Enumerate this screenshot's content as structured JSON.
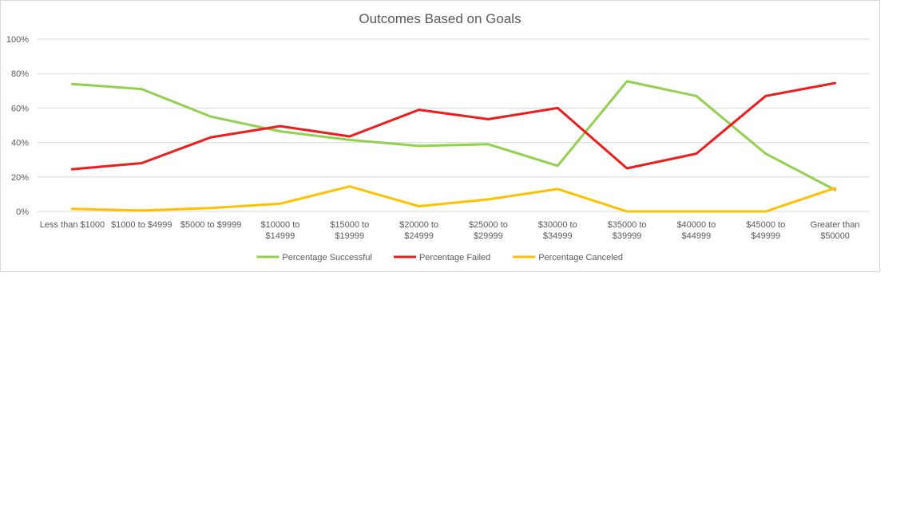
{
  "chart_data": {
    "type": "line",
    "title": "Outcomes Based on Goals",
    "xlabel": "",
    "ylabel": "",
    "categories": [
      [
        "Less than $1000"
      ],
      [
        "$1000 to $4999"
      ],
      [
        "$5000 to $9999"
      ],
      [
        "$10000 to",
        "$14999"
      ],
      [
        "$15000 to",
        "$19999"
      ],
      [
        "$20000 to",
        "$24999"
      ],
      [
        "$25000 to",
        "$29999"
      ],
      [
        "$30000 to",
        "$34999"
      ],
      [
        "$35000 to",
        "$39999"
      ],
      [
        "$40000 to",
        "$44999"
      ],
      [
        "$45000 to",
        "$49999"
      ],
      [
        "Greater than",
        "$50000"
      ]
    ],
    "ylim": [
      0,
      100
    ],
    "yticks": [
      "0%",
      "20%",
      "40%",
      "60%",
      "80%",
      "100%"
    ],
    "ytick_values": [
      0,
      20,
      40,
      60,
      80,
      100
    ],
    "grid": true,
    "legend_position": "bottom",
    "series": [
      {
        "name": "Percentage Successful",
        "color": "#92d050",
        "values": [
          74,
          71,
          55,
          46.5,
          41.5,
          38,
          39,
          26.5,
          75.5,
          67,
          33.5,
          12.5
        ]
      },
      {
        "name": "Percentage Failed",
        "color": "#ee1c1c",
        "values": [
          24.5,
          28,
          43,
          49.5,
          43.5,
          59,
          53.5,
          60,
          25,
          33.5,
          67,
          74.5
        ]
      },
      {
        "name": "Percentage Canceled",
        "color": "#ffc000",
        "values": [
          1.5,
          0.5,
          2,
          4.5,
          14.5,
          3,
          7,
          13,
          0,
          0,
          0,
          13.5
        ]
      }
    ]
  }
}
